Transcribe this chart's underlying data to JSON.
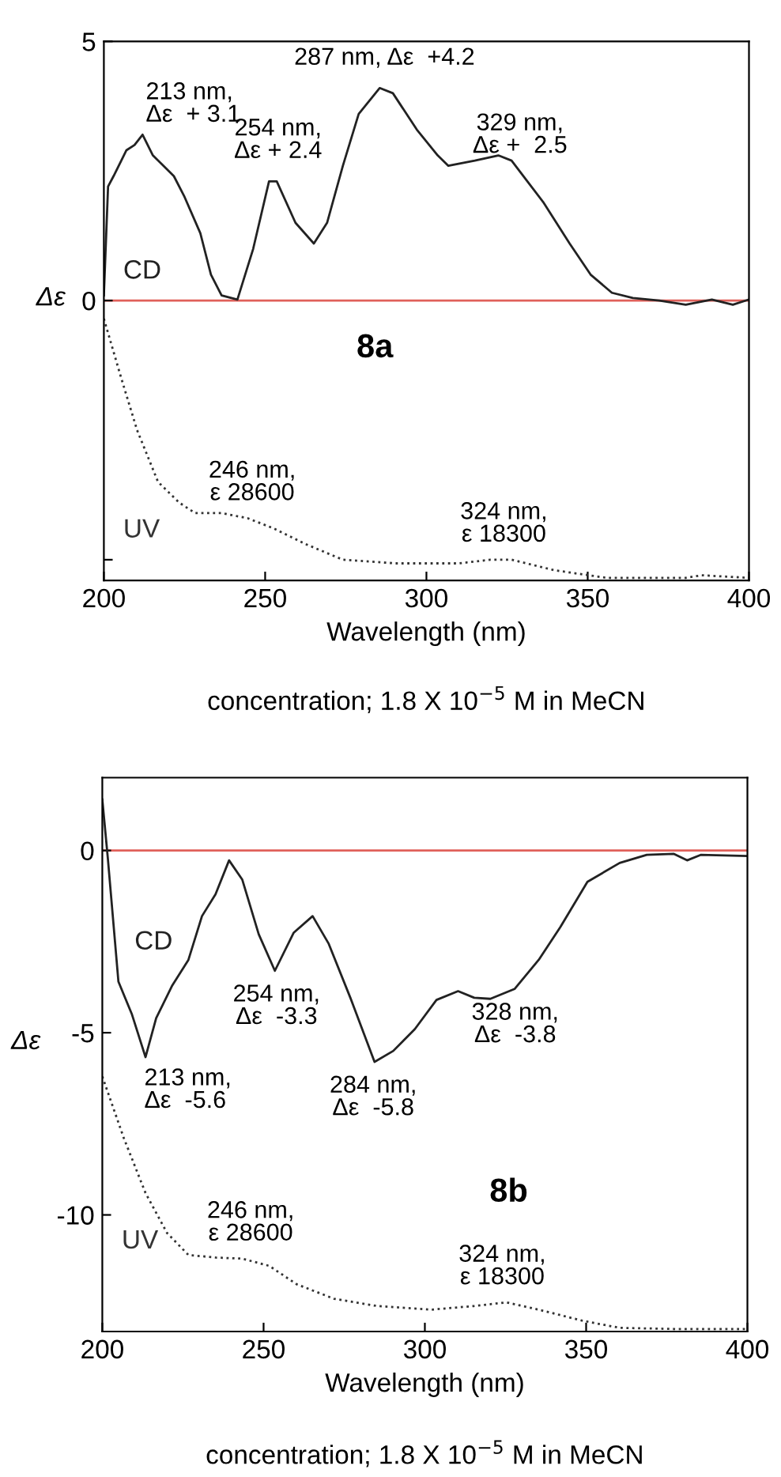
{
  "chart_data": [
    {
      "type": "line",
      "title": "8a",
      "xlabel": "Wavelength (nm)",
      "ylabel": "Δε",
      "xlim": [
        200,
        400
      ],
      "xticks": [
        200,
        250,
        300,
        350,
        400
      ],
      "ylim": [
        -5.4,
        5
      ],
      "yticks": [
        5,
        0,
        {
          "value": -5,
          "label": null
        }
      ],
      "grid": false,
      "legend": false,
      "ref_lines": [
        {
          "axis": "y",
          "value": 0,
          "color": "#e0605a"
        }
      ],
      "series": [
        {
          "name": "CD",
          "color": "#222222",
          "line_style": "solid",
          "x": [
            200,
            201.3,
            203,
            205.4,
            207,
            209.5,
            212,
            215.2,
            221.7,
            225,
            229.9,
            233.2,
            236.5,
            241.4,
            246.3,
            251.2,
            253.6,
            259.4,
            265.1,
            269.2,
            274.1,
            279,
            285.5,
            289.6,
            297,
            303.5,
            306.8,
            315,
            322.3,
            326.4,
            331.3,
            336.2,
            344.4,
            350.9,
            357.5,
            364,
            372.2,
            380.4,
            388.5,
            395,
            400
          ],
          "values": [
            0.1,
            2.2,
            2.4,
            2.7,
            2.9,
            3.0,
            3.2,
            2.8,
            2.4,
            2.0,
            1.3,
            0.5,
            0.1,
            0.02,
            1.0,
            2.3,
            2.3,
            1.5,
            1.1,
            1.5,
            2.6,
            3.6,
            4.1,
            4.0,
            3.3,
            2.8,
            2.6,
            2.7,
            2.8,
            2.7,
            2.3,
            1.9,
            1.1,
            0.5,
            0.15,
            0.05,
            0,
            -0.08,
            0.02,
            -0.08,
            0.02
          ]
        },
        {
          "name": "UV",
          "color": "#333333",
          "line_style": "dotted",
          "x": [
            200,
            205.4,
            210.3,
            216.8,
            223.4,
            228.3,
            236.5,
            244.6,
            252.8,
            262.6,
            274.1,
            290.4,
            310,
            319.9,
            326.4,
            339.5,
            355.8,
            380.4,
            385.3,
            400
          ],
          "values": [
            -0.35,
            -1.5,
            -2.5,
            -3.5,
            -3.9,
            -4.1,
            -4.1,
            -4.2,
            -4.4,
            -4.7,
            -5.0,
            -5.07,
            -5.07,
            -5.0,
            -5.0,
            -5.2,
            -5.35,
            -5.35,
            -5.3,
            -5.35
          ]
        }
      ],
      "annotations": [
        {
          "text": "213 nm,\nΔε  + 3.1",
          "x": 213,
          "y": 3.1
        },
        {
          "text": "254 nm,\nΔε + 2.4",
          "x": 254,
          "y": 2.4
        },
        {
          "text": "287 nm, Δε  +4.2",
          "x": 287,
          "y": 4.2
        },
        {
          "text": "329 nm,\nΔε +  2.5",
          "x": 329,
          "y": 2.5
        },
        {
          "text": "246 nm,\nε 28600",
          "x": 246,
          "y": -4.2
        },
        {
          "text": "324 nm,\nε 18300",
          "x": 324,
          "y": -5.0
        },
        "concentration; 1.8 X 10$^{−5}$ M in MeCN"
      ]
    },
    {
      "type": "line",
      "title": "8b",
      "xlabel": "Wavelength (nm)",
      "ylabel": "Δε",
      "xlim": [
        200,
        400
      ],
      "xticks": [
        200,
        250,
        300,
        350,
        400
      ],
      "ylim": [
        -13.2,
        2
      ],
      "yticks": [
        0,
        -5,
        -10
      ],
      "grid": false,
      "legend": false,
      "ref_lines": [
        {
          "axis": "y",
          "value": 0,
          "color": "#e0605a"
        }
      ],
      "series": [
        {
          "name": "CD",
          "color": "#222222",
          "line_style": "solid",
          "x": [
            200,
            201.7,
            205,
            209.2,
            213.4,
            216.7,
            221.7,
            226.7,
            230.9,
            235.1,
            239.3,
            243.4,
            248.5,
            253.5,
            259.3,
            265.2,
            270.2,
            276.9,
            284.4,
            290.2,
            296.9,
            303.6,
            310.3,
            315.3,
            320.3,
            327.8,
            335.3,
            342,
            350.4,
            360.4,
            368.8,
            377.1,
            381.3,
            385.5,
            400
          ],
          "values": [
            1.4,
            -0.2,
            -3.6,
            -4.5,
            -5.67,
            -4.6,
            -3.7,
            -3.0,
            -1.8,
            -1.2,
            -0.27,
            -0.8,
            -2.3,
            -3.3,
            -2.26,
            -1.8,
            -2.56,
            -4.04,
            -5.8,
            -5.5,
            -4.9,
            -4.1,
            -3.86,
            -4.04,
            -4.07,
            -3.8,
            -3.0,
            -2.1,
            -0.86,
            -0.34,
            -0.12,
            -0.09,
            -0.27,
            -0.12,
            -0.15
          ]
        },
        {
          "name": "UV",
          "color": "#333333",
          "line_style": "dotted",
          "x": [
            200,
            206.7,
            213.4,
            220.1,
            226.7,
            235.1,
            243.4,
            251.8,
            260.2,
            271.8,
            285.2,
            301.9,
            315.3,
            325.3,
            335.3,
            348.7,
            360.4,
            377.1,
            400
          ],
          "values": [
            -6.2,
            -7.9,
            -9.4,
            -10.5,
            -11.1,
            -11.17,
            -11.2,
            -11.4,
            -11.9,
            -12.3,
            -12.5,
            -12.6,
            -12.5,
            -12.4,
            -12.6,
            -12.9,
            -13.1,
            -13.13,
            -13.13
          ]
        }
      ],
      "annotations": [
        {
          "text": "213 nm,\nΔε  -5.6",
          "x": 213,
          "y": -5.6
        },
        {
          "text": "254 nm,\nΔε  -3.3",
          "x": 254,
          "y": -3.3
        },
        {
          "text": "284 nm,\nΔε  -5.8",
          "x": 284,
          "y": -5.8
        },
        {
          "text": "328 nm,\nΔε  -3.8",
          "x": 328,
          "y": -3.8
        },
        {
          "text": "246 nm,\nε 28600",
          "x": 246,
          "y": -11.2
        },
        {
          "text": "324 nm,\nε 18300",
          "x": 324,
          "y": -12.4
        },
        "concentration; 1.8 X 10$^{−5}$ M in MeCN"
      ]
    }
  ]
}
